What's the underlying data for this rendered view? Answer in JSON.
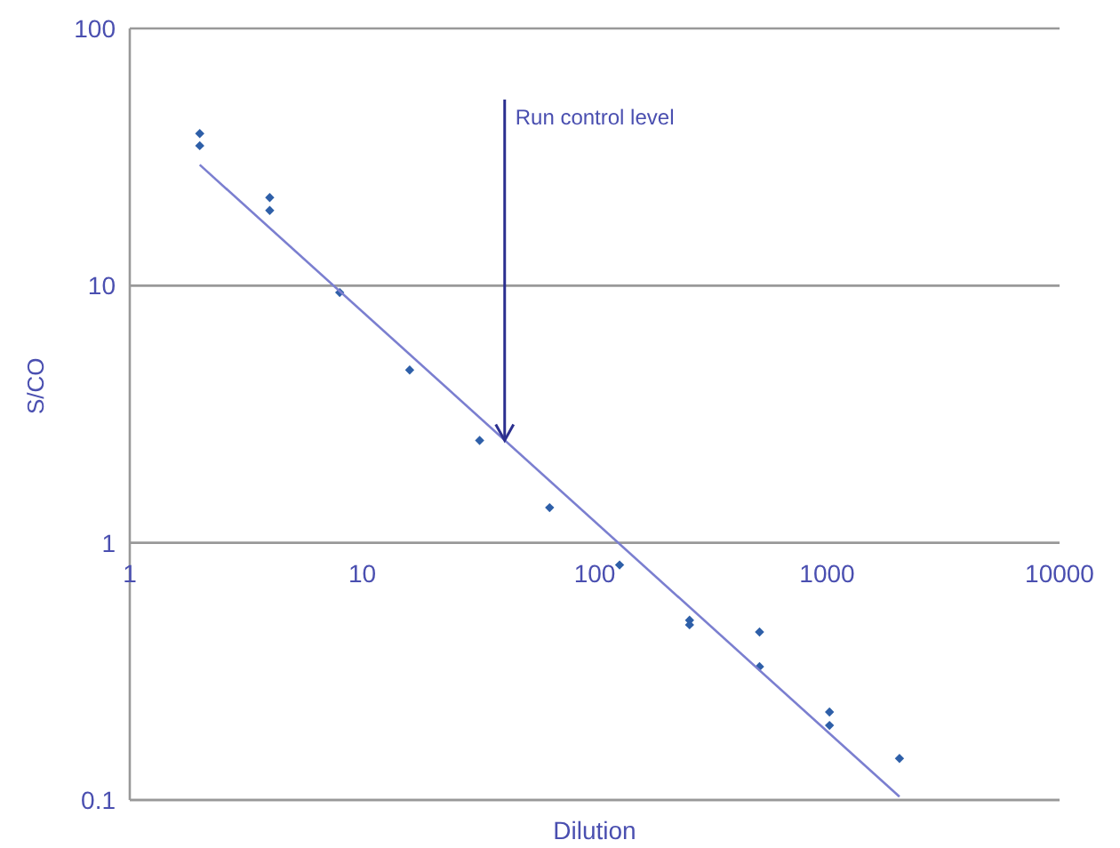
{
  "chart_data": {
    "type": "scatter",
    "xlabel": "Dilution",
    "ylabel": "S/CO",
    "log": "xy",
    "grid": "y",
    "legend": false,
    "xlim": [
      1,
      10000
    ],
    "xticks": [
      1,
      10,
      100,
      1000,
      10000
    ],
    "ylim": [
      0.1,
      100
    ],
    "yticks": [
      0.1,
      1,
      10,
      100
    ],
    "annotations": [
      {
        "text": "Run control level",
        "x": 41,
        "y": 2.5
      }
    ],
    "series": [
      {
        "marker": "diamond",
        "color": "#2e5fa8",
        "x": [
          2,
          2,
          4,
          4,
          8,
          16,
          32,
          64,
          128,
          256,
          256,
          512,
          512,
          1024,
          1024,
          2048
        ],
        "values": [
          39,
          35,
          22,
          19.6,
          9.4,
          4.7,
          2.5,
          1.37,
          0.82,
          0.5,
          0.48,
          0.45,
          0.33,
          0.22,
          0.195,
          0.145
        ]
      },
      {
        "type": "line",
        "color": "#7b7fd0",
        "x": [
          2,
          2048
        ],
        "values": [
          29.5,
          0.103
        ]
      }
    ]
  }
}
